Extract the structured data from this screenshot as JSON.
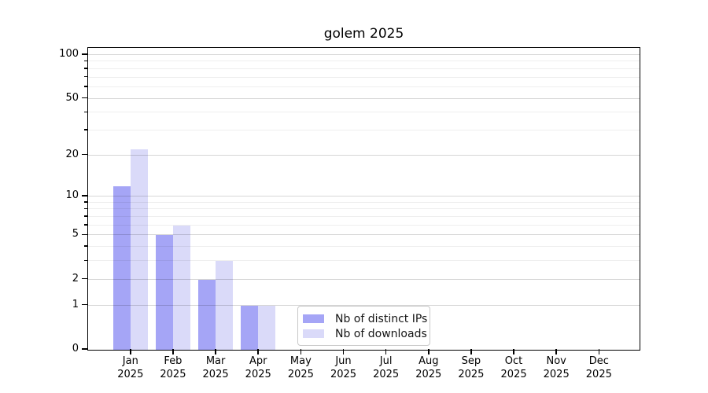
{
  "title": "golem 2025",
  "chart_data": {
    "type": "bar",
    "title": "golem 2025",
    "scale": "log1p",
    "categories": [
      "Jan",
      "Feb",
      "Mar",
      "Apr",
      "May",
      "Jun",
      "Jul",
      "Aug",
      "Sep",
      "Oct",
      "Nov",
      "Dec"
    ],
    "year_label": "2025",
    "series": [
      {
        "name": "Nb of distinct IPs",
        "color": "#a5a5f6",
        "values": [
          12,
          5,
          2,
          1,
          0,
          0,
          0,
          0,
          0,
          0,
          0,
          0
        ]
      },
      {
        "name": "Nb of downloads",
        "color": "#dadaf9",
        "values": [
          22,
          6,
          3,
          1,
          0,
          0,
          0,
          0,
          0,
          0,
          0,
          0
        ]
      }
    ],
    "y_ticks": [
      0,
      1,
      2,
      5,
      10,
      20,
      50,
      100
    ],
    "y_minor_ticks": [
      3,
      4,
      6,
      7,
      8,
      9,
      30,
      40,
      60,
      70,
      80,
      90
    ],
    "ylim": [
      0,
      112
    ],
    "grid": "both",
    "legend": {
      "position": "lower center",
      "labels": [
        "Nb of distinct IPs",
        "Nb of downloads"
      ]
    }
  }
}
